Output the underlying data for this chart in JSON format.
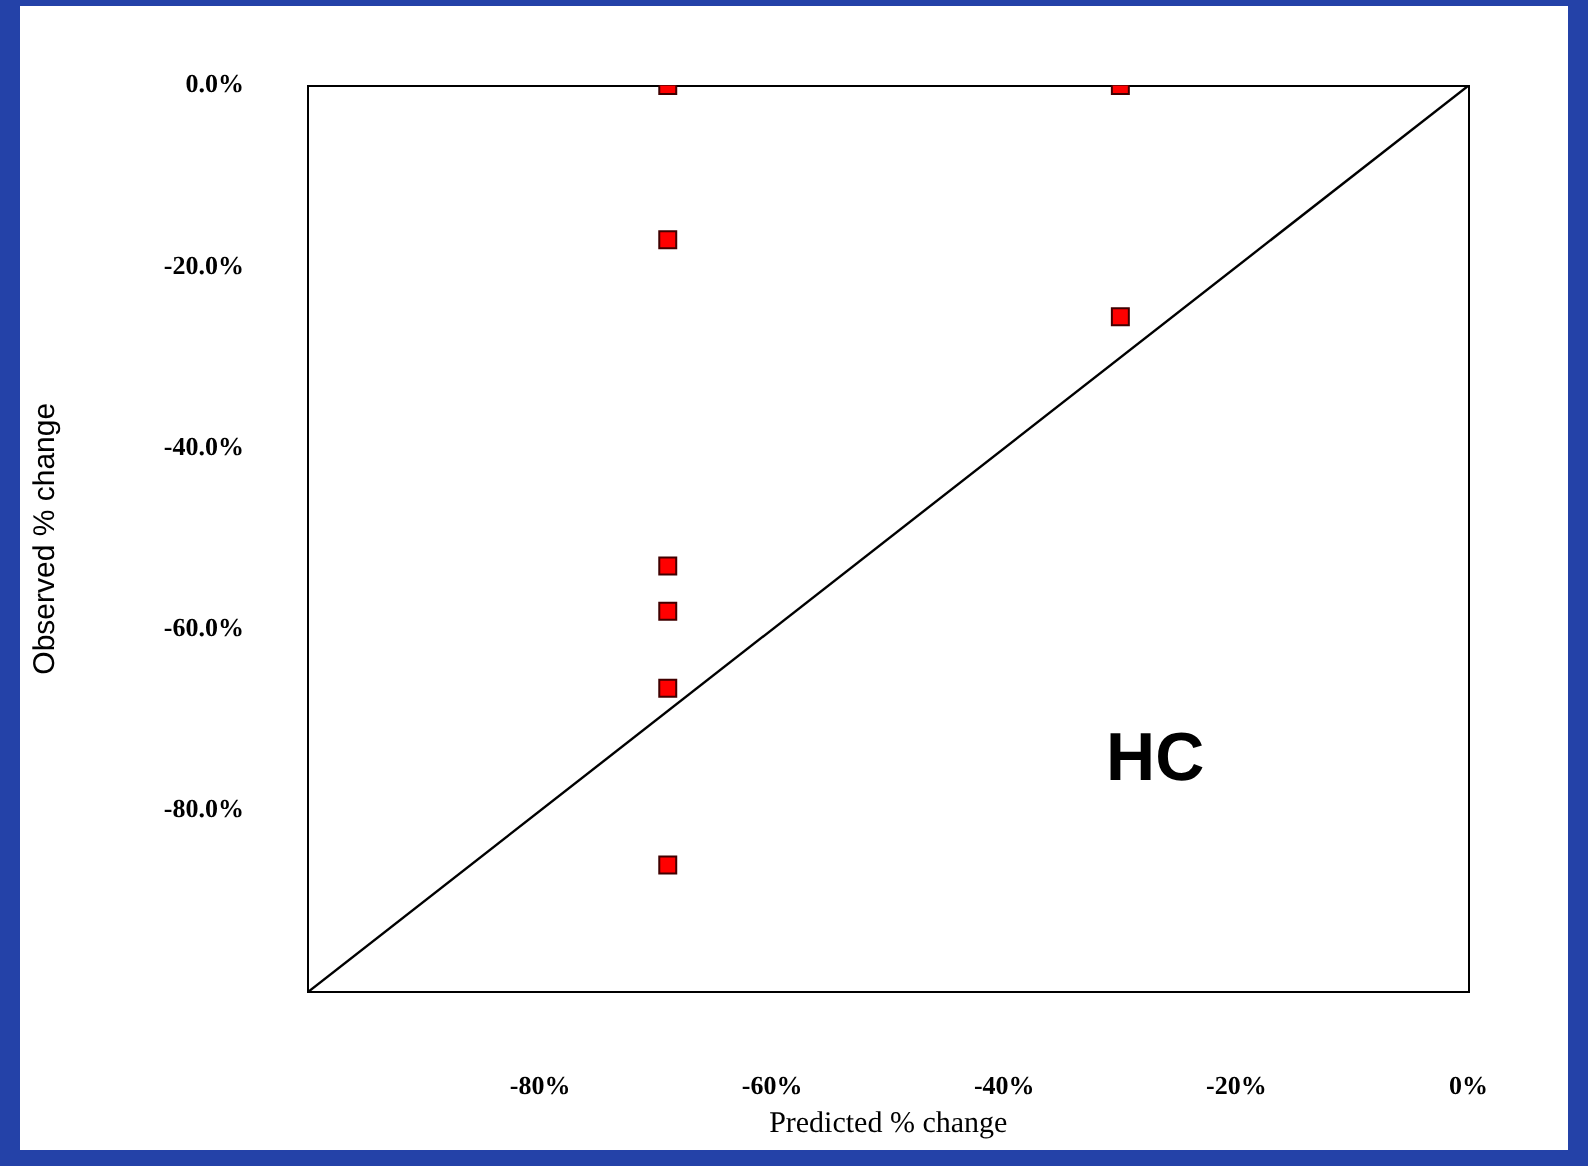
{
  "chart_data": {
    "type": "scatter",
    "xlabel": "Predicted % change",
    "ylabel": "Observed % change",
    "series": [
      {
        "color": "#ff0000",
        "marker": "square",
        "x": [
          -69,
          -69,
          -69,
          -69,
          -69,
          -69,
          -30,
          -30
        ],
        "values": [
          0,
          -17,
          -53,
          -58,
          -66.5,
          -86,
          0,
          -25.5
        ]
      },
      {
        "type": "line",
        "color": "#000000",
        "marker": "none",
        "x": [
          -100,
          0
        ],
        "values": [
          -100,
          0
        ]
      }
    ],
    "xlim": [
      -100,
      0
    ],
    "ylim": [
      -100,
      0
    ],
    "xticks": [
      {
        "value": -80,
        "label": "-80%"
      },
      {
        "value": -60,
        "label": "-60%"
      },
      {
        "value": -40,
        "label": "-40%"
      },
      {
        "value": -20,
        "label": "-20%"
      },
      {
        "value": 0,
        "label": "0%"
      }
    ],
    "yticks": [
      {
        "value": 0,
        "label": "0.0%"
      },
      {
        "value": -20,
        "label": "-20.0%"
      },
      {
        "value": -40,
        "label": "-40.0%"
      },
      {
        "value": -60,
        "label": "-60.0%"
      },
      {
        "value": -80,
        "label": "-80.0%"
      }
    ],
    "grid": false,
    "legend": false,
    "annotations": [
      "HC"
    ]
  }
}
